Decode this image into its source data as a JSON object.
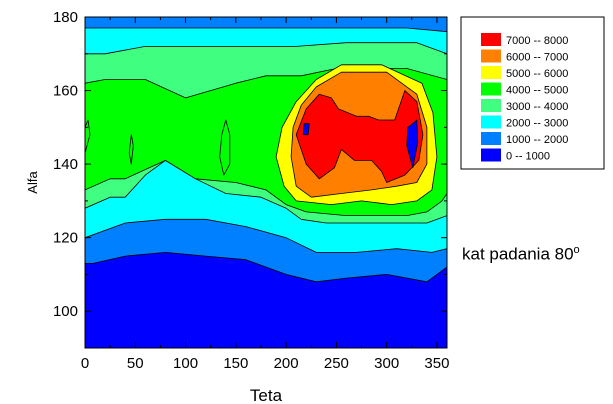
{
  "chart_data": {
    "type": "heatmap",
    "subtype": "filled-contour",
    "xlabel": "Teta",
    "ylabel": "Alfa",
    "xlim": [
      0,
      360
    ],
    "ylim": [
      90,
      180
    ],
    "xticks": [
      0,
      50,
      100,
      150,
      200,
      250,
      300,
      350
    ],
    "yticks": [
      100,
      120,
      140,
      160,
      180
    ],
    "grid": false,
    "legend_position": "top-right",
    "levels": [
      {
        "label": "7000  --  8000",
        "min": 7000,
        "max": 8000,
        "color": "#ff0000"
      },
      {
        "label": "6000  --  7000",
        "min": 6000,
        "max": 7000,
        "color": "#ff8000"
      },
      {
        "label": "5000  --  6000",
        "min": 5000,
        "max": 6000,
        "color": "#ffff00"
      },
      {
        "label": "4000  --  5000",
        "min": 4000,
        "max": 5000,
        "color": "#00ff00"
      },
      {
        "label": "3000  --  4000",
        "min": 3000,
        "max": 4000,
        "color": "#40ff80"
      },
      {
        "label": "2000  --  3000",
        "min": 2000,
        "max": 3000,
        "color": "#00ffff"
      },
      {
        "label": "1000  --  2000",
        "min": 1000,
        "max": 2000,
        "color": "#0080ff"
      },
      {
        "label": "0  --  1000",
        "min": 0,
        "max": 1000,
        "color": "#0000ff"
      }
    ],
    "regions": [
      {
        "level": 1000,
        "points": [
          [
            0,
            113
          ],
          [
            8,
            113
          ],
          [
            40,
            115
          ],
          [
            80,
            116
          ],
          [
            120,
            115
          ],
          [
            160,
            114
          ],
          [
            200,
            110
          ],
          [
            230,
            108
          ],
          [
            260,
            109
          ],
          [
            300,
            110
          ],
          [
            340,
            108
          ],
          [
            360,
            112
          ],
          [
            360,
            180
          ],
          [
            0,
            180
          ]
        ]
      },
      {
        "level": 2000,
        "points": [
          [
            0,
            120
          ],
          [
            40,
            124
          ],
          [
            80,
            125
          ],
          [
            120,
            125
          ],
          [
            160,
            123
          ],
          [
            200,
            120
          ],
          [
            230,
            116
          ],
          [
            270,
            116
          ],
          [
            310,
            117
          ],
          [
            345,
            116
          ],
          [
            360,
            117
          ],
          [
            360,
            176
          ],
          [
            320,
            177
          ],
          [
            250,
            177
          ],
          [
            200,
            177
          ],
          [
            120,
            177
          ],
          [
            50,
            177
          ],
          [
            0,
            177
          ]
        ]
      },
      {
        "level": 3000,
        "points": [
          [
            0,
            128
          ],
          [
            25,
            131
          ],
          [
            40,
            131
          ],
          [
            60,
            137
          ],
          [
            80,
            141
          ],
          [
            110,
            136
          ],
          [
            140,
            132
          ],
          [
            175,
            131
          ],
          [
            200,
            128
          ],
          [
            215,
            125
          ],
          [
            240,
            124
          ],
          [
            275,
            124
          ],
          [
            310,
            124
          ],
          [
            340,
            124
          ],
          [
            360,
            126
          ],
          [
            360,
            170
          ],
          [
            330,
            173
          ],
          [
            300,
            173
          ],
          [
            260,
            173
          ],
          [
            210,
            172
          ],
          [
            160,
            172
          ],
          [
            110,
            172
          ],
          [
            60,
            172
          ],
          [
            20,
            170
          ],
          [
            0,
            170
          ]
        ]
      },
      {
        "level": 4000,
        "points": [
          [
            0,
            133
          ],
          [
            25,
            136
          ],
          [
            40,
            136
          ],
          [
            80,
            141
          ],
          [
            110,
            136
          ],
          [
            150,
            135
          ],
          [
            180,
            133
          ],
          [
            200,
            129
          ],
          [
            220,
            127
          ],
          [
            260,
            126
          ],
          [
            290,
            126
          ],
          [
            320,
            126
          ],
          [
            340,
            127
          ],
          [
            355,
            130
          ],
          [
            360,
            132
          ],
          [
            360,
            163
          ],
          [
            320,
            166
          ],
          [
            290,
            166
          ],
          [
            250,
            166
          ],
          [
            215,
            164
          ],
          [
            180,
            164
          ],
          [
            150,
            162
          ],
          [
            100,
            158
          ],
          [
            60,
            163
          ],
          [
            20,
            163
          ],
          [
            0,
            162
          ]
        ]
      },
      {
        "level": 5000,
        "points": [
          [
            190,
            142
          ],
          [
            198,
            134
          ],
          [
            210,
            130
          ],
          [
            245,
            129
          ],
          [
            275,
            130
          ],
          [
            305,
            129
          ],
          [
            330,
            130
          ],
          [
            345,
            133
          ],
          [
            350,
            142
          ],
          [
            346,
            154
          ],
          [
            335,
            162
          ],
          [
            295,
            167
          ],
          [
            255,
            167
          ],
          [
            230,
            163
          ],
          [
            210,
            157
          ],
          [
            196,
            150
          ]
        ]
      },
      {
        "level": 6000,
        "points": [
          [
            205,
            142
          ],
          [
            210,
            134
          ],
          [
            225,
            131
          ],
          [
            255,
            132
          ],
          [
            285,
            133
          ],
          [
            310,
            134
          ],
          [
            330,
            135
          ],
          [
            340,
            140
          ],
          [
            340,
            150
          ],
          [
            330,
            159
          ],
          [
            300,
            165
          ],
          [
            255,
            165
          ],
          [
            230,
            161
          ],
          [
            215,
            156
          ],
          [
            207,
            150
          ]
        ]
      },
      {
        "level": 7000,
        "points": [
          [
            210,
            148
          ],
          [
            220,
            140
          ],
          [
            233,
            136
          ],
          [
            248,
            139
          ],
          [
            255,
            144
          ],
          [
            268,
            141
          ],
          [
            285,
            141
          ],
          [
            295,
            138
          ],
          [
            300,
            135
          ],
          [
            318,
            137
          ],
          [
            332,
            141
          ],
          [
            336,
            148
          ],
          [
            330,
            157
          ],
          [
            318,
            160
          ],
          [
            308,
            152
          ],
          [
            292,
            152
          ],
          [
            282,
            153
          ],
          [
            270,
            153
          ],
          [
            252,
            155
          ],
          [
            245,
            158
          ],
          [
            233,
            159
          ],
          [
            220,
            155
          ]
        ]
      },
      {
        "level": 4000,
        "points": [
          [
            0,
            143
          ],
          [
            5,
            148
          ],
          [
            3,
            152
          ],
          [
            0,
            150
          ]
        ]
      },
      {
        "level": 4000,
        "points": [
          [
            44,
            143
          ],
          [
            46,
            140
          ],
          [
            48,
            145
          ],
          [
            46,
            148
          ]
        ]
      },
      {
        "level": 4000,
        "points": [
          [
            134,
            142
          ],
          [
            138,
            137
          ],
          [
            144,
            140
          ],
          [
            144,
            148
          ],
          [
            140,
            152
          ],
          [
            136,
            148
          ]
        ]
      },
      {
        "level": 8000,
        "points": [
          [
            217,
            148
          ],
          [
            222,
            148
          ],
          [
            223,
            151
          ],
          [
            218,
            151
          ]
        ]
      },
      {
        "level": 8000,
        "points": [
          [
            320,
            145
          ],
          [
            326,
            139
          ],
          [
            331,
            146
          ],
          [
            330,
            152
          ],
          [
            326,
            151
          ],
          [
            321,
            150
          ]
        ]
      }
    ]
  },
  "annotation": {
    "text": "kat padania 80",
    "superscript": "o"
  }
}
